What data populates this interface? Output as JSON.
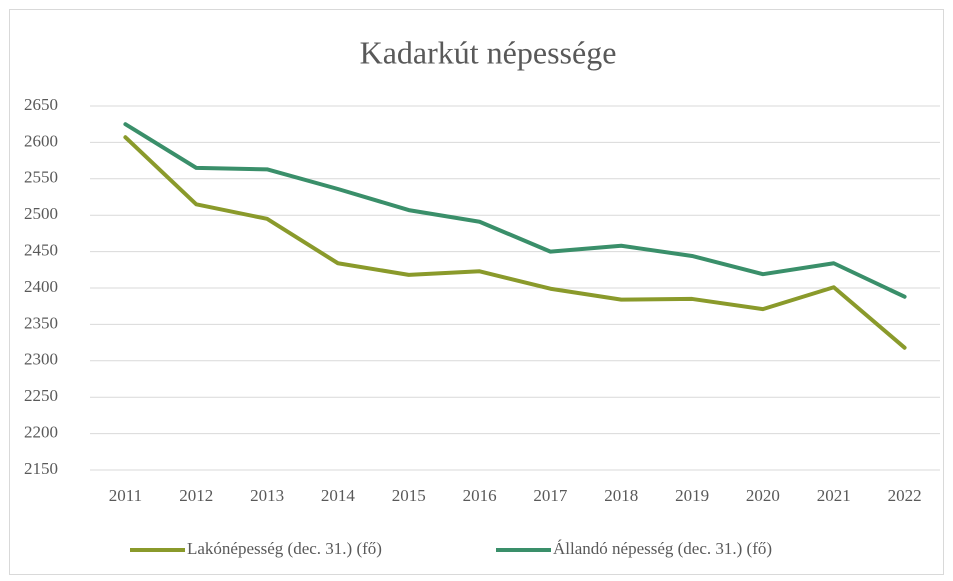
{
  "chart_data": {
    "type": "line",
    "title": "Kadarkút népessége",
    "categories": [
      "2011",
      "2012",
      "2013",
      "2014",
      "2015",
      "2016",
      "2017",
      "2018",
      "2019",
      "2020",
      "2021",
      "2022"
    ],
    "series": [
      {
        "name": "Lakónépesség (dec. 31.) (fő)",
        "color": "#8a9a2b",
        "values": [
          2607,
          2515,
          2495,
          2434,
          2418,
          2423,
          2399,
          2384,
          2385,
          2371,
          2401,
          2318
        ]
      },
      {
        "name": "Állandó népesség (dec. 31.) (fő)",
        "color": "#3a8f6a",
        "values": [
          2625,
          2565,
          2563,
          2536,
          2507,
          2491,
          2450,
          2458,
          2444,
          2419,
          2434,
          2388
        ]
      }
    ],
    "ylim": [
      2150,
      2650
    ],
    "yticks": [
      2150,
      2200,
      2250,
      2300,
      2350,
      2400,
      2450,
      2500,
      2550,
      2600,
      2650
    ],
    "grid": true,
    "legend": "bottom"
  }
}
